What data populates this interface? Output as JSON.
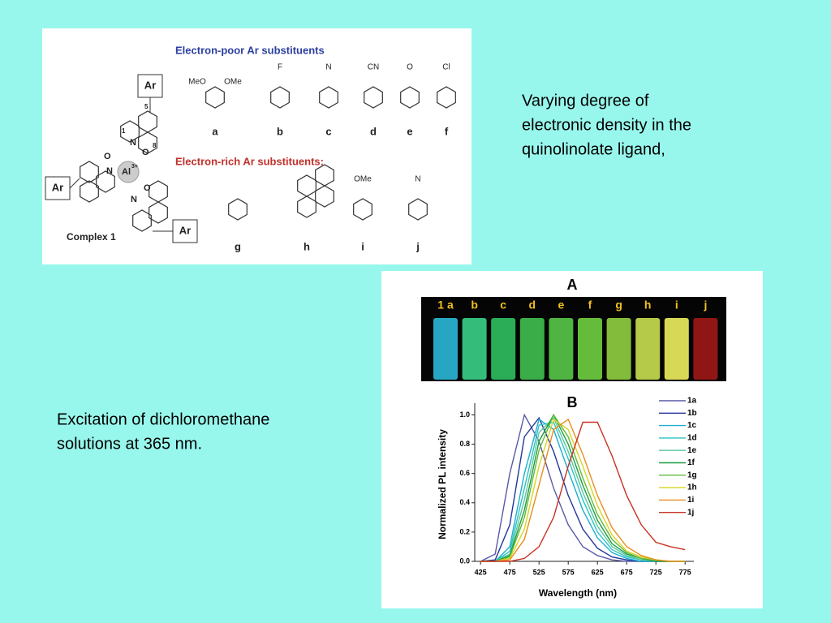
{
  "text_blocks": [
    {
      "lines": [
        "Varying degree of",
        "electronic density in the",
        "quinolinolate ligand,"
      ]
    },
    {
      "lines": [
        "Excitation of dichloromethane",
        "solutions at  365 nm."
      ]
    }
  ],
  "structure_figure": {
    "heading_poor": "Electron-poor Ar substituents",
    "heading_rich": "Electron-rich Ar substituents:",
    "complex_label": "Complex 1",
    "ar_label": "Ar",
    "metal": "Al",
    "metal_charge": "3+",
    "atom_n": "N",
    "atom_o": "O",
    "positions": [
      "1",
      "5",
      "8"
    ],
    "substituents": [
      {
        "label": "a",
        "groups": [
          "MeO",
          "OMe"
        ]
      },
      {
        "label": "b",
        "groups": [
          "F"
        ]
      },
      {
        "label": "c",
        "groups": [
          "N"
        ]
      },
      {
        "label": "d",
        "groups": [
          "CN"
        ]
      },
      {
        "label": "e",
        "groups": [
          "O"
        ]
      },
      {
        "label": "f",
        "groups": [
          "Cl"
        ]
      },
      {
        "label": "g",
        "groups": []
      },
      {
        "label": "h",
        "groups": []
      },
      {
        "label": "i",
        "groups": [
          "OMe"
        ]
      },
      {
        "label": "j",
        "groups": [
          "N"
        ]
      }
    ]
  },
  "vials": {
    "panel": "A",
    "labels": [
      "1 a",
      "b",
      "c",
      "d",
      "e",
      "f",
      "g",
      "h",
      "i",
      "j"
    ],
    "colors": [
      "#2bb8d8",
      "#3ad088",
      "#30c060",
      "#40c050",
      "#58c848",
      "#70d040",
      "#90d040",
      "#c8e050",
      "#f0f060",
      "#a01818"
    ]
  },
  "spectra": {
    "panel": "B",
    "x_label": "Wavelength (nm)",
    "y_label": "Normalized PL intensity",
    "xlim": [
      415,
      790
    ],
    "xticks": [
      425,
      475,
      525,
      575,
      625,
      675,
      725,
      775
    ],
    "ylim": [
      0,
      1.08
    ],
    "yticks": [
      {
        "value": 0,
        "label": "0.0"
      },
      0.2,
      0.4,
      0.6,
      0.8,
      {
        "value": 1,
        "label": "1.0"
      }
    ],
    "x": [
      425,
      450,
      475,
      500,
      525,
      550,
      575,
      600,
      625,
      650,
      675,
      700,
      725,
      750,
      775
    ],
    "series": [
      {
        "name": "1a",
        "color": "#5a5aa8",
        "values": [
          0,
          0.05,
          0.6,
          1.0,
          0.82,
          0.5,
          0.25,
          0.1,
          0.04,
          0.01,
          0,
          0,
          0,
          0,
          0
        ]
      },
      {
        "name": "1b",
        "color": "#23379a",
        "values": [
          0,
          0.01,
          0.25,
          0.85,
          0.98,
          0.75,
          0.45,
          0.22,
          0.09,
          0.03,
          0.01,
          0,
          0,
          0,
          0
        ]
      },
      {
        "name": "1c",
        "color": "#1eaed0",
        "values": [
          0,
          0,
          0.1,
          0.6,
          0.97,
          0.9,
          0.62,
          0.35,
          0.16,
          0.06,
          0.02,
          0,
          0,
          0,
          0
        ]
      },
      {
        "name": "1d",
        "color": "#2cc4c0",
        "values": [
          0,
          0,
          0.07,
          0.5,
          0.93,
          0.95,
          0.7,
          0.42,
          0.2,
          0.08,
          0.03,
          0.01,
          0,
          0,
          0
        ]
      },
      {
        "name": "1e",
        "color": "#5cc8a0",
        "values": [
          0,
          0,
          0.05,
          0.42,
          0.88,
          0.98,
          0.75,
          0.47,
          0.24,
          0.1,
          0.04,
          0.01,
          0,
          0,
          0
        ]
      },
      {
        "name": "1f",
        "color": "#1e9c40",
        "values": [
          0,
          0,
          0.04,
          0.35,
          0.82,
          1.0,
          0.8,
          0.52,
          0.28,
          0.12,
          0.05,
          0.02,
          0,
          0,
          0
        ]
      },
      {
        "name": "1g",
        "color": "#60bc3c",
        "values": [
          0,
          0,
          0.03,
          0.3,
          0.76,
          1.0,
          0.85,
          0.57,
          0.32,
          0.15,
          0.06,
          0.02,
          0.01,
          0,
          0
        ]
      },
      {
        "name": "1h",
        "color": "#d8d420",
        "values": [
          0,
          0,
          0.02,
          0.22,
          0.65,
          0.97,
          0.9,
          0.65,
          0.38,
          0.18,
          0.07,
          0.03,
          0.01,
          0,
          0
        ]
      },
      {
        "name": "1i",
        "color": "#e88c20",
        "values": [
          0,
          0,
          0.01,
          0.15,
          0.52,
          0.9,
          0.97,
          0.73,
          0.45,
          0.23,
          0.1,
          0.04,
          0.01,
          0,
          0
        ]
      },
      {
        "name": "1j",
        "color": "#c83222",
        "values": [
          0,
          0,
          0,
          0.02,
          0.1,
          0.3,
          0.65,
          0.95,
          0.95,
          0.72,
          0.45,
          0.25,
          0.13,
          0.1,
          0.08
        ]
      }
    ]
  }
}
